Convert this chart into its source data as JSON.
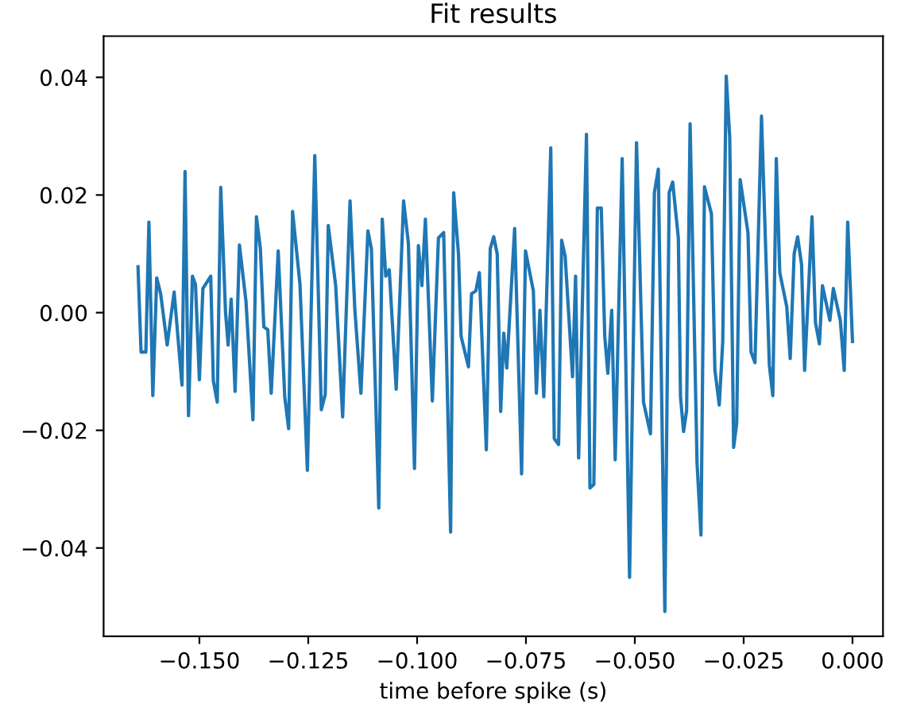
{
  "chart_data": {
    "type": "line",
    "title": "Fit results",
    "xlabel": "time before spike (s)",
    "xlim": [
      -0.172,
      0.007
    ],
    "ylim": [
      -0.055,
      0.047
    ],
    "xticks": [
      {
        "value": -0.15,
        "label": "−0.150"
      },
      {
        "value": -0.125,
        "label": "−0.125"
      },
      {
        "value": -0.1,
        "label": "−0.100"
      },
      {
        "value": -0.075,
        "label": "−0.075"
      },
      {
        "value": -0.05,
        "label": "−0.050"
      },
      {
        "value": -0.025,
        "label": "−0.025"
      },
      {
        "value": 0,
        "label": "0.000"
      }
    ],
    "yticks": [
      {
        "value": -0.04,
        "label": "−0.04"
      },
      {
        "value": -0.02,
        "label": "−0.02"
      },
      {
        "value": 0,
        "label": "0.00"
      },
      {
        "value": 0.02,
        "label": "0.02"
      },
      {
        "value": 0.04,
        "label": "0.04"
      }
    ],
    "grid": false,
    "legend": false,
    "marker": "none",
    "line_style": "solid",
    "series": [
      {
        "color": "#1f77b4",
        "x": [
          -0.1641,
          -0.1634,
          -0.1623,
          -0.1616,
          -0.1607,
          -0.1598,
          -0.1589,
          -0.1574,
          -0.1558,
          -0.154,
          -0.1533,
          -0.1525,
          -0.1516,
          -0.1509,
          -0.15,
          -0.1492,
          -0.1474,
          -0.1468,
          -0.1459,
          -0.1451,
          -0.144,
          -0.1434,
          -0.1427,
          -0.1418,
          -0.1408,
          -0.1393,
          -0.1377,
          -0.1369,
          -0.136,
          -0.1352,
          -0.1343,
          -0.1335,
          -0.1319,
          -0.1304,
          -0.1295,
          -0.1286,
          -0.1269,
          -0.1252,
          -0.1235,
          -0.122,
          -0.1211,
          -0.1204,
          -0.1187,
          -0.1171,
          -0.1154,
          -0.1143,
          -0.1129,
          -0.1113,
          -0.1105,
          -0.1088,
          -0.108,
          -0.1072,
          -0.1064,
          -0.1048,
          -0.1031,
          -0.102,
          -0.1006,
          -0.0997,
          -0.0989,
          -0.0981,
          -0.0965,
          -0.0951,
          -0.0939,
          -0.0923,
          -0.0916,
          -0.0905,
          -0.0899,
          -0.0882,
          -0.0875,
          -0.0865,
          -0.0857,
          -0.0841,
          -0.0832,
          -0.0824,
          -0.0816,
          -0.0808,
          -0.0801,
          -0.0794,
          -0.0776,
          -0.076,
          -0.0751,
          -0.0733,
          -0.0726,
          -0.0718,
          -0.0709,
          -0.0693,
          -0.0685,
          -0.0675,
          -0.0668,
          -0.066,
          -0.0643,
          -0.0636,
          -0.0629,
          -0.0611,
          -0.0603,
          -0.0594,
          -0.0586,
          -0.0577,
          -0.0569,
          -0.0562,
          -0.0553,
          -0.0545,
          -0.0529,
          -0.0512,
          -0.0496,
          -0.048,
          -0.0464,
          -0.0455,
          -0.0446,
          -0.0431,
          -0.0421,
          -0.0413,
          -0.04,
          -0.0395,
          -0.0388,
          -0.0381,
          -0.0373,
          -0.0357,
          -0.0348,
          -0.034,
          -0.0324,
          -0.0316,
          -0.0306,
          -0.0298,
          -0.029,
          -0.0282,
          -0.0273,
          -0.0266,
          -0.0258,
          -0.024,
          -0.0233,
          -0.0224,
          -0.0209,
          -0.0191,
          -0.0183,
          -0.0175,
          -0.0167,
          -0.0151,
          -0.0143,
          -0.0134,
          -0.0126,
          -0.0117,
          -0.011,
          -0.0093,
          -0.0085,
          -0.0076,
          -0.0069,
          -0.0052,
          -0.0044,
          -0.0028,
          -0.0019,
          -0.0011,
          0.0
        ],
        "values": [
          0.0078,
          -0.0067,
          -0.0067,
          0.0154,
          -0.0141,
          0.0059,
          0.0032,
          -0.0055,
          0.0035,
          -0.0123,
          0.024,
          -0.0175,
          0.0062,
          0.0048,
          -0.0114,
          0.0041,
          0.0062,
          -0.0116,
          -0.0152,
          0.0213,
          0.0001,
          -0.0055,
          0.0023,
          -0.0134,
          0.0115,
          0.0019,
          -0.0182,
          0.0163,
          0.0109,
          -0.0024,
          -0.0029,
          -0.0137,
          0.0105,
          -0.0143,
          -0.0197,
          0.0172,
          0.0048,
          -0.0268,
          0.0267,
          -0.0165,
          -0.0139,
          0.0148,
          0.0046,
          -0.0177,
          0.019,
          0.0005,
          -0.0137,
          0.0139,
          0.0109,
          -0.0332,
          0.0159,
          0.0062,
          0.0073,
          -0.013,
          0.019,
          0.0118,
          -0.0265,
          0.0114,
          0.0046,
          0.0159,
          -0.015,
          0.0127,
          0.0136,
          -0.0373,
          0.0204,
          0.01,
          -0.004,
          -0.0092,
          0.0032,
          0.0037,
          0.0068,
          -0.0233,
          0.0109,
          0.0129,
          0.01,
          -0.0168,
          -0.0035,
          -0.0094,
          0.0143,
          -0.0274,
          0.0105,
          0.0037,
          -0.0137,
          0.0004,
          -0.0143,
          0.028,
          -0.0214,
          -0.0224,
          0.0123,
          0.0096,
          -0.0109,
          0.0062,
          -0.0247,
          0.0303,
          -0.0298,
          -0.0292,
          0.0178,
          0.0178,
          -0.004,
          -0.0103,
          0.0004,
          -0.025,
          0.0262,
          -0.045,
          0.0289,
          -0.0152,
          -0.0206,
          0.0204,
          0.0244,
          -0.0508,
          0.0204,
          0.0222,
          0.0127,
          -0.0143,
          -0.0202,
          -0.0166,
          0.0321,
          -0.0256,
          -0.0378,
          0.0214,
          0.0168,
          -0.0098,
          -0.0157,
          -0.0049,
          0.0402,
          0.0298,
          -0.0229,
          -0.0188,
          0.0226,
          0.0136,
          -0.0067,
          -0.0085,
          0.0334,
          -0.0089,
          -0.0141,
          0.0262,
          0.0068,
          0.001,
          -0.0078,
          0.01,
          0.0129,
          0.0082,
          -0.0098,
          0.0163,
          -0.0017,
          -0.0053,
          0.0046,
          -0.0013,
          0.0041,
          -0.0013,
          -0.0098,
          0.0154,
          -0.0049
        ]
      }
    ]
  }
}
